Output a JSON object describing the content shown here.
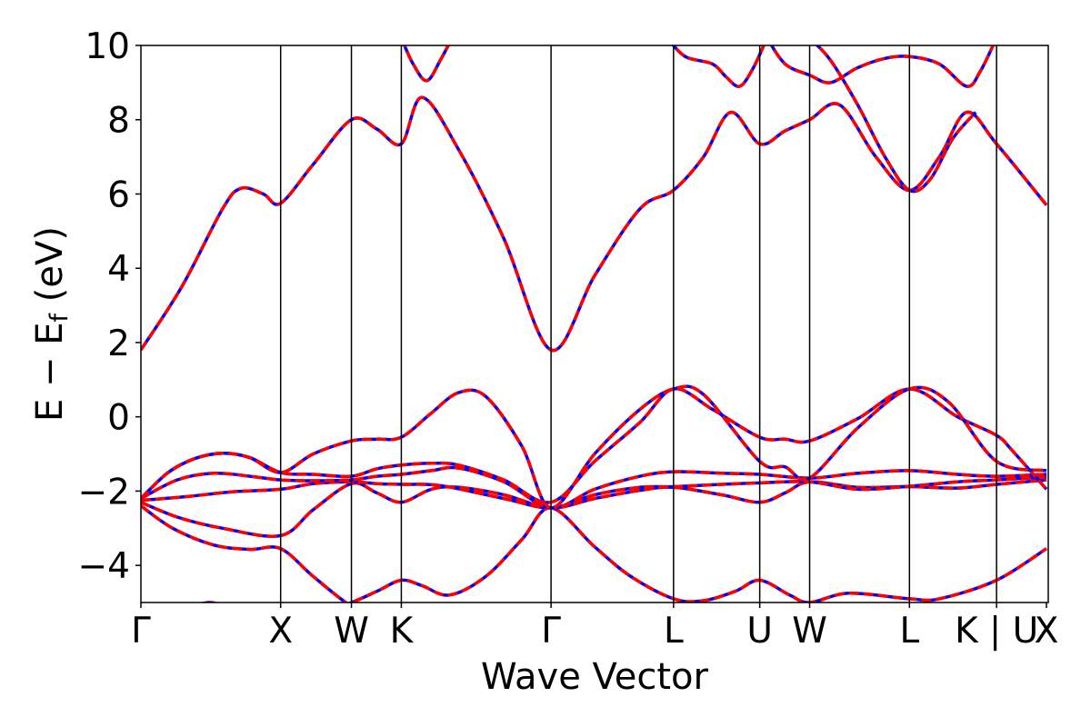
{
  "chart_data": {
    "type": "line",
    "xlabel": "Wave Vector",
    "ylabel": "E − E",
    "ylabel_sub": "f",
    "ylabel_unit": " (eV)",
    "ylim": [
      -5,
      10
    ],
    "yticks": [
      -4,
      -2,
      0,
      2,
      4,
      6,
      8,
      10
    ],
    "ytick_labels": [
      "−4",
      "−2",
      "0",
      "2",
      "4",
      "6",
      "8",
      "10"
    ],
    "xlim": [
      0,
      1000
    ],
    "kpoints": [
      {
        "label": "Γ",
        "x": 0
      },
      {
        "label": "X",
        "x": 154
      },
      {
        "label": "W",
        "x": 232
      },
      {
        "label": "K",
        "x": 287
      },
      {
        "label": "Γ",
        "x": 452
      },
      {
        "label": "L",
        "x": 587
      },
      {
        "label": "U",
        "x": 682
      },
      {
        "label": "W",
        "x": 737
      },
      {
        "label": "L",
        "x": 847
      },
      {
        "label": "K | U",
        "x": 943
      },
      {
        "label": "X",
        "x": 998
      }
    ],
    "series_styles": [
      {
        "color": "#0000ff",
        "dash": "solid"
      },
      {
        "color": "#ff0000",
        "dash": "dashed"
      }
    ],
    "bands": [
      [
        [
          0,
          -5.5
        ],
        [
          45,
          -5.2
        ],
        [
          75,
          -5.0
        ],
        [
          100,
          -5.15
        ],
        [
          154,
          -5.3
        ],
        [
          200,
          -5.25
        ],
        [
          232,
          -5.0
        ],
        [
          260,
          -4.7
        ],
        [
          287,
          -4.4
        ],
        [
          310,
          -4.55
        ],
        [
          340,
          -4.8
        ],
        [
          380,
          -4.3
        ],
        [
          420,
          -3.3
        ],
        [
          452,
          -2.45
        ],
        [
          500,
          -3.5
        ],
        [
          540,
          -4.3
        ],
        [
          587,
          -4.9
        ],
        [
          620,
          -4.95
        ],
        [
          655,
          -4.7
        ],
        [
          682,
          -4.4
        ],
        [
          715,
          -4.8
        ],
        [
          737,
          -5.0
        ],
        [
          780,
          -4.75
        ],
        [
          847,
          -4.9
        ],
        [
          880,
          -4.9
        ],
        [
          943,
          -4.4
        ],
        [
          998,
          -3.55
        ]
      ],
      [
        [
          0,
          -2.4
        ],
        [
          35,
          -3.0
        ],
        [
          80,
          -3.45
        ],
        [
          120,
          -3.57
        ],
        [
          154,
          -3.55
        ],
        [
          190,
          -4.3
        ],
        [
          232,
          -5.1
        ],
        [
          260,
          -5.3
        ],
        [
          287,
          -5.5
        ]
      ],
      [
        [
          0,
          -2.3
        ],
        [
          40,
          -2.7
        ],
        [
          90,
          -3.0
        ],
        [
          154,
          -3.2
        ],
        [
          190,
          -2.5
        ],
        [
          232,
          -1.8
        ],
        [
          260,
          -2.05
        ],
        [
          287,
          -2.3
        ],
        [
          320,
          -1.95
        ],
        [
          350,
          -1.9
        ],
        [
          400,
          -2.1
        ],
        [
          452,
          -2.45
        ],
        [
          500,
          -2.2
        ],
        [
          550,
          -1.98
        ],
        [
          587,
          -1.9
        ],
        [
          640,
          -2.1
        ],
        [
          682,
          -2.3
        ],
        [
          710,
          -2.05
        ],
        [
          737,
          -1.75
        ],
        [
          790,
          -1.9
        ],
        [
          847,
          -1.88
        ],
        [
          900,
          -1.92
        ],
        [
          943,
          -1.82
        ],
        [
          998,
          -1.7
        ]
      ],
      [
        [
          0,
          -2.25
        ],
        [
          50,
          -2.15
        ],
        [
          100,
          -2.02
        ],
        [
          154,
          -1.95
        ],
        [
          190,
          -1.8
        ],
        [
          232,
          -1.75
        ],
        [
          260,
          -1.8
        ],
        [
          287,
          -1.82
        ],
        [
          330,
          -1.85
        ],
        [
          400,
          -2.2
        ],
        [
          452,
          -2.45
        ],
        [
          500,
          -2.1
        ],
        [
          550,
          -1.9
        ],
        [
          587,
          -1.88
        ],
        [
          640,
          -1.82
        ],
        [
          682,
          -1.78
        ],
        [
          737,
          -1.75
        ],
        [
          790,
          -1.95
        ],
        [
          847,
          -1.87
        ],
        [
          900,
          -1.75
        ],
        [
          943,
          -1.7
        ],
        [
          998,
          -1.62
        ]
      ],
      [
        [
          0,
          -2.2
        ],
        [
          40,
          -1.7
        ],
        [
          80,
          -1.52
        ],
        [
          120,
          -1.6
        ],
        [
          154,
          -1.7
        ],
        [
          190,
          -1.72
        ],
        [
          232,
          -1.7
        ],
        [
          260,
          -1.6
        ],
        [
          287,
          -1.55
        ],
        [
          320,
          -1.45
        ],
        [
          350,
          -1.38
        ],
        [
          400,
          -1.75
        ],
        [
          452,
          -2.45
        ],
        [
          500,
          -1.95
        ],
        [
          550,
          -1.6
        ],
        [
          587,
          -1.48
        ],
        [
          640,
          -1.52
        ],
        [
          682,
          -1.55
        ],
        [
          737,
          -1.65
        ],
        [
          790,
          -1.52
        ],
        [
          847,
          -1.45
        ],
        [
          900,
          -1.55
        ],
        [
          943,
          -1.6
        ],
        [
          998,
          -1.55
        ]
      ],
      [
        [
          0,
          -2.2
        ],
        [
          30,
          -1.5
        ],
        [
          60,
          -1.12
        ],
        [
          90,
          -0.98
        ],
        [
          120,
          -1.1
        ],
        [
          154,
          -1.5
        ],
        [
          190,
          -1.55
        ],
        [
          232,
          -1.6
        ],
        [
          260,
          -1.4
        ],
        [
          287,
          -1.3
        ],
        [
          320,
          -1.25
        ],
        [
          350,
          -1.3
        ],
        [
          400,
          -1.7
        ],
        [
          452,
          -2.3
        ],
        [
          500,
          -1.2
        ],
        [
          550,
          -0.15
        ],
        [
          587,
          0.75
        ],
        [
          630,
          0.2
        ],
        [
          682,
          -0.55
        ],
        [
          710,
          -0.6
        ],
        [
          737,
          -0.65
        ],
        [
          790,
          -0.05
        ],
        [
          847,
          0.75
        ],
        [
          900,
          0.0
        ],
        [
          943,
          -0.5
        ],
        [
          960,
          -0.9
        ],
        [
          998,
          -1.95
        ]
      ],
      [
        [
          0,
          -2.2
        ],
        [
          30,
          -1.5
        ],
        [
          60,
          -1.12
        ],
        [
          90,
          -0.98
        ],
        [
          120,
          -1.1
        ],
        [
          154,
          -1.5
        ],
        [
          190,
          -1.0
        ],
        [
          232,
          -0.65
        ],
        [
          260,
          -0.6
        ],
        [
          287,
          -0.55
        ],
        [
          320,
          0.1
        ],
        [
          350,
          0.65
        ],
        [
          380,
          0.55
        ],
        [
          420,
          -0.8
        ],
        [
          452,
          -2.45
        ],
        [
          500,
          -1.0
        ],
        [
          550,
          0.2
        ],
        [
          587,
          0.75
        ],
        [
          620,
          0.6
        ],
        [
          682,
          -1.2
        ],
        [
          710,
          -1.35
        ],
        [
          737,
          -1.65
        ],
        [
          790,
          -0.3
        ],
        [
          847,
          0.75
        ],
        [
          890,
          0.4
        ],
        [
          943,
          -1.2
        ],
        [
          998,
          -1.45
        ]
      ],
      [
        [
          0,
          1.8
        ],
        [
          45,
          3.5
        ],
        [
          90,
          5.6
        ],
        [
          110,
          6.15
        ],
        [
          135,
          6.0
        ],
        [
          154,
          5.75
        ],
        [
          190,
          6.8
        ],
        [
          232,
          8.0
        ],
        [
          260,
          7.75
        ],
        [
          287,
          7.35
        ],
        [
          310,
          8.6
        ],
        [
          350,
          7.2
        ],
        [
          400,
          4.8
        ],
        [
          452,
          1.8
        ],
        [
          500,
          3.8
        ],
        [
          550,
          5.6
        ],
        [
          587,
          6.1
        ],
        [
          620,
          7.0
        ],
        [
          650,
          8.2
        ],
        [
          682,
          7.35
        ],
        [
          710,
          7.7
        ],
        [
          737,
          8.0
        ],
        [
          770,
          8.4
        ],
        [
          810,
          7.0
        ],
        [
          847,
          6.1
        ],
        [
          880,
          7.0
        ],
        [
          910,
          8.2
        ],
        [
          943,
          7.35
        ],
        [
          998,
          5.7
        ]
      ],
      [
        [
          287,
          10.2
        ],
        [
          300,
          9.5
        ],
        [
          315,
          9.05
        ],
        [
          330,
          9.6
        ],
        [
          345,
          10.3
        ]
      ],
      [
        [
          580,
          10.2
        ],
        [
          600,
          9.7
        ],
        [
          630,
          9.5
        ],
        [
          645,
          9.15
        ],
        [
          660,
          8.9
        ],
        [
          675,
          9.4
        ],
        [
          690,
          10.2
        ]
      ],
      [
        [
          690,
          10.2
        ],
        [
          710,
          9.5
        ],
        [
          737,
          9.2
        ],
        [
          760,
          9.0
        ],
        [
          790,
          9.4
        ],
        [
          820,
          9.65
        ],
        [
          847,
          9.7
        ],
        [
          880,
          9.5
        ],
        [
          910,
          8.9
        ],
        [
          925,
          9.3
        ],
        [
          943,
          10.2
        ]
      ],
      [
        [
          737,
          10.2
        ],
        [
          760,
          9.6
        ],
        [
          790,
          8.4
        ],
        [
          820,
          7.0
        ],
        [
          847,
          6.1
        ],
        [
          870,
          6.4
        ],
        [
          895,
          7.5
        ],
        [
          920,
          8.2
        ]
      ]
    ]
  }
}
